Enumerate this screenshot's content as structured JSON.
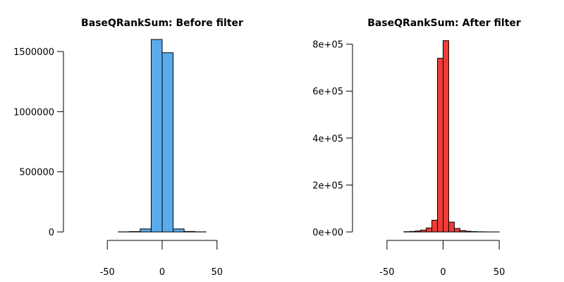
{
  "chart_data": [
    {
      "type": "bar",
      "title": "BaseQRankSum: Before filter",
      "xlabel": "",
      "ylabel": "",
      "color": "#5aabec",
      "xlim": [
        -90,
        90
      ],
      "ylim": [
        0,
        1600000
      ],
      "x_ticks": [
        -50,
        0,
        50
      ],
      "y_ticks": [
        0,
        500000,
        1000000,
        1500000
      ],
      "y_tick_labels": [
        "0",
        "500000",
        "1000000",
        "1500000"
      ],
      "bin_edges": [
        -90,
        -80,
        -70,
        -60,
        -50,
        -40,
        -30,
        -20,
        -10,
        0,
        10,
        20,
        30,
        40,
        50,
        60,
        70,
        80,
        90
      ],
      "values": [
        0,
        0,
        0,
        0,
        0,
        1000,
        3000,
        25000,
        1600000,
        1490000,
        25000,
        4000,
        1000,
        0,
        0,
        0,
        0,
        0
      ],
      "grid": false,
      "legend": "none"
    },
    {
      "type": "bar",
      "title": "BaseQRankSum: After filter",
      "xlabel": "",
      "ylabel": "",
      "color": "#f03c38",
      "xlim": [
        -65,
        65
      ],
      "ylim": [
        0,
        820000
      ],
      "x_ticks": [
        -50,
        0,
        50
      ],
      "y_ticks": [
        0,
        200000,
        400000,
        600000,
        800000
      ],
      "y_tick_labels": [
        "0e+00",
        "2e+05",
        "4e+05",
        "6e+05",
        "8e+05"
      ],
      "bin_edges": [
        -65,
        -60,
        -55,
        -50,
        -45,
        -40,
        -35,
        -30,
        -25,
        -20,
        -15,
        -10,
        -5,
        0,
        5,
        10,
        15,
        20,
        25,
        30,
        35,
        40,
        45,
        50,
        55,
        60,
        65
      ],
      "values": [
        0,
        0,
        0,
        0,
        0,
        0,
        1000,
        2000,
        4000,
        8000,
        17000,
        50000,
        740000,
        815000,
        42000,
        15000,
        6000,
        3000,
        1500,
        800,
        400,
        200,
        100,
        0,
        0,
        0
      ],
      "grid": false,
      "legend": "none"
    }
  ]
}
